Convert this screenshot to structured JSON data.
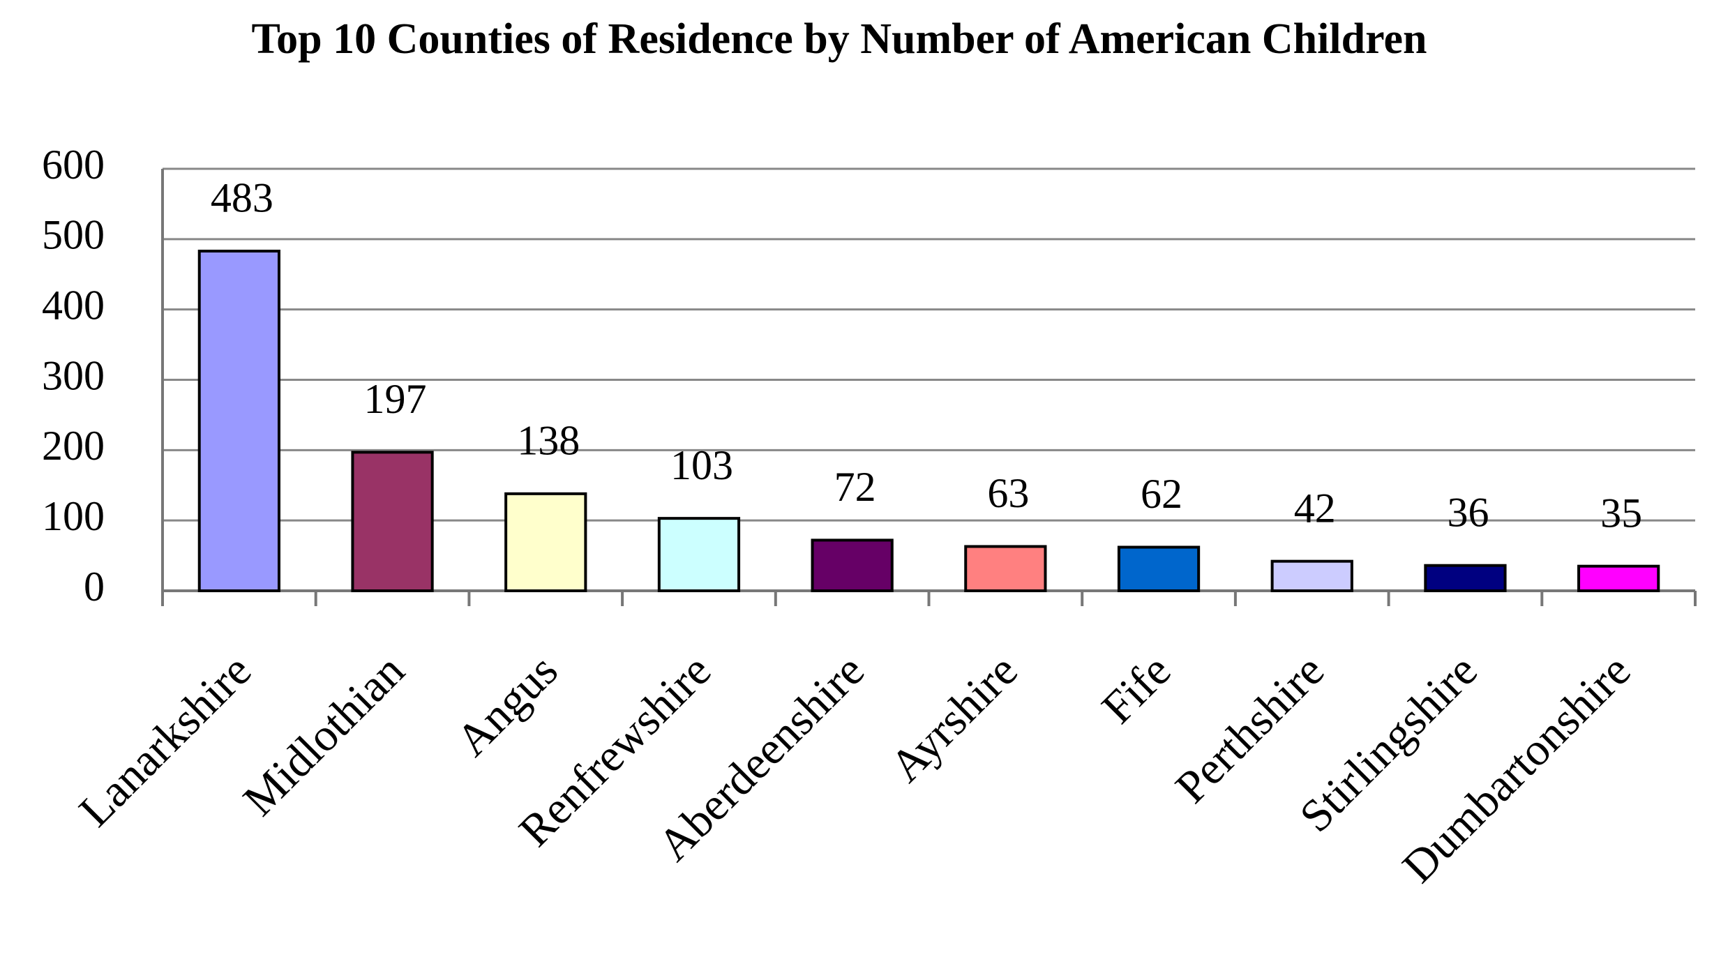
{
  "chart_data": {
    "type": "bar",
    "title": "Top 10 Counties of Residence by Number of American Children",
    "categories": [
      "Lanarkshire",
      "Midlothian",
      "Angus",
      "Renfrewshire",
      "Aberdeenshire",
      "Ayrshire",
      "Fife",
      "Perthshire",
      "Stirlingshire",
      "Dumbartonshire"
    ],
    "values": [
      483,
      197,
      138,
      103,
      72,
      63,
      62,
      42,
      36,
      35
    ],
    "colors": [
      "#9999ff",
      "#993366",
      "#ffffcc",
      "#ccffff",
      "#660066",
      "#ff8080",
      "#0066cc",
      "#ccccff",
      "#000080",
      "#ff00ff"
    ],
    "ylim": [
      0,
      600
    ],
    "yticks": [
      0,
      100,
      200,
      300,
      400,
      500,
      600
    ],
    "grid": true
  }
}
